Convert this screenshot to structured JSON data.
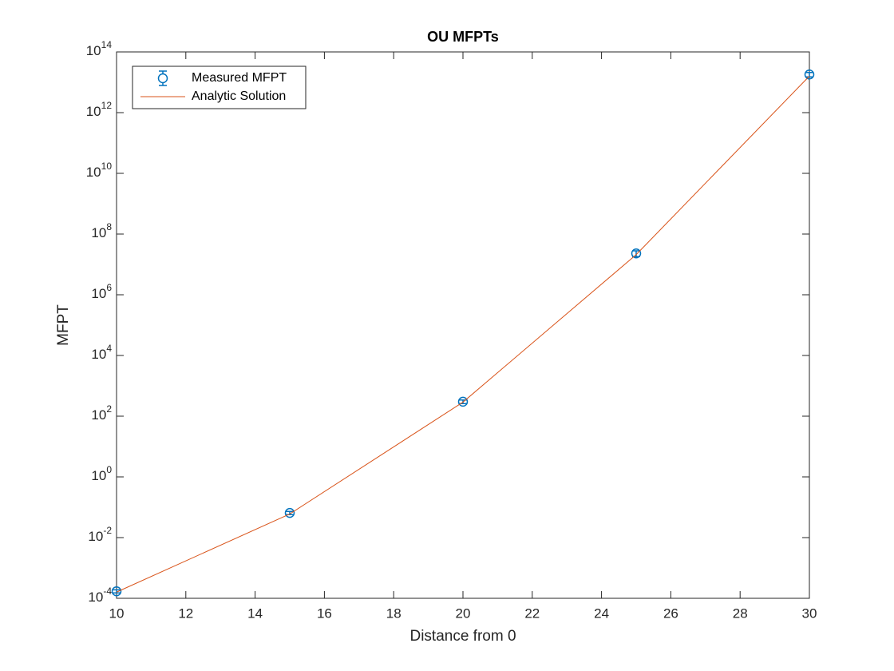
{
  "chart_data": {
    "type": "line",
    "title": "OU MFPTs",
    "xlabel": "Distance from 0",
    "ylabel": "MFPT",
    "x": [
      10,
      15,
      20,
      25,
      30
    ],
    "series": [
      {
        "name": "Measured MFPT",
        "color": "#0072bd",
        "marker": "o",
        "values": [
          0.00017,
          0.065,
          300,
          23000000,
          18000000000000
        ],
        "errors": [
          2e-05,
          0.008,
          40,
          5000000,
          3000000000000
        ]
      },
      {
        "name": "Analytic Solution",
        "color": "#d95319",
        "values": [
          0.00016,
          0.06,
          290,
          21000000,
          16000000000000
        ]
      }
    ],
    "xlim": [
      10,
      30
    ],
    "xticks": [
      10,
      12,
      14,
      16,
      18,
      20,
      22,
      24,
      26,
      28,
      30
    ],
    "ylim": [
      0.0001,
      100000000000000
    ],
    "yscale": "log",
    "yticks": [
      {
        "value": 0.0001,
        "label": "10^-4"
      },
      {
        "value": 0.01,
        "label": "10^-2"
      },
      {
        "value": 1,
        "label": "10^0"
      },
      {
        "value": 100,
        "label": "10^2"
      },
      {
        "value": 10000,
        "label": "10^4"
      },
      {
        "value": 1000000,
        "label": "10^6"
      },
      {
        "value": 100000000,
        "label": "10^8"
      },
      {
        "value": 10000000000,
        "label": "10^10"
      },
      {
        "value": 1000000000000,
        "label": "10^12"
      },
      {
        "value": 100000000000000,
        "label": "10^14"
      }
    ],
    "grid": false,
    "legend": "northwest"
  }
}
